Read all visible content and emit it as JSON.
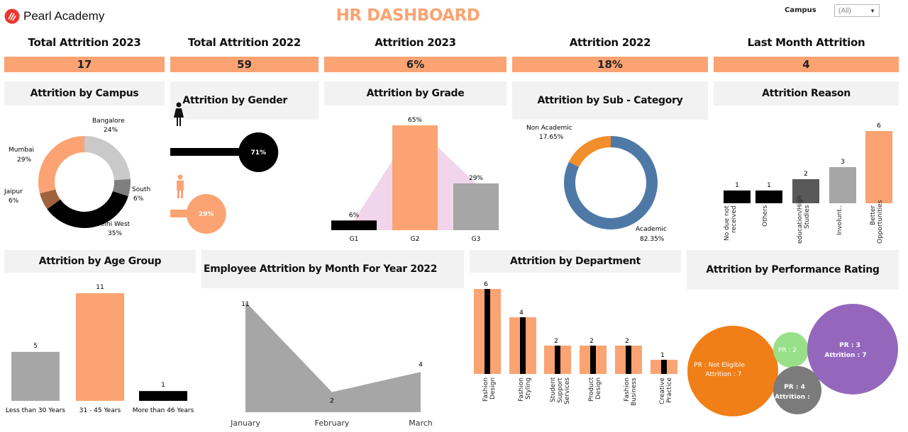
{
  "brand": {
    "name": "Pearl Academy",
    "color": "#e8382f"
  },
  "title": "HR DASHBOARD",
  "campus_filter": {
    "label": "Campus",
    "value": "(All)"
  },
  "kpis": [
    {
      "label": "Total Attrition 2023",
      "value": "17"
    },
    {
      "label": "Total Attrition 2022",
      "value": "59"
    },
    {
      "label": "Attrition 2023",
      "value": "6%"
    },
    {
      "label": "Attrition 2022",
      "value": "18%"
    },
    {
      "label": "Last Month Attrition",
      "value": "4"
    }
  ],
  "panels": {
    "campus": "Attrition by Campus",
    "gender": "Attrition  by Gender",
    "grade": "Attrition by Grade",
    "subcat": "Attrition by Sub - Category",
    "reason": "Attrition Reason",
    "age": "Attrition by Age Group",
    "month": "Employee Attrition by Month For Year 2022",
    "dept": "Attrition by Department",
    "perf": "Attrition by Performance Rating"
  },
  "colors": {
    "accent": "#fba373",
    "dark": "#000000",
    "grey": "#a6a6a6",
    "blue": "#4e79a7",
    "orange": "#f28e2b",
    "purple": "#9467bd",
    "green": "#98df8a",
    "darkgrey": "#7f7f7f"
  },
  "chart_data": [
    {
      "type": "pie",
      "id": "campus",
      "categories": [
        "Bangalore",
        "South",
        "Delhi West",
        "Jaipur",
        "Mumbai"
      ],
      "values": [
        24,
        6,
        35,
        6,
        29
      ],
      "labels": [
        "24%",
        "6%",
        "35%",
        "6%",
        "29%"
      ]
    },
    {
      "type": "bar",
      "id": "gender",
      "categories": [
        "Female",
        "Male"
      ],
      "values": [
        71,
        29
      ],
      "labels": [
        "71%",
        "29%"
      ]
    },
    {
      "type": "bar",
      "id": "grade",
      "categories": [
        "G1",
        "G2",
        "G3"
      ],
      "values": [
        6,
        65,
        29
      ],
      "labels": [
        "6%",
        "65%",
        "29%"
      ]
    },
    {
      "type": "pie",
      "id": "subcat",
      "categories": [
        "Non Academic",
        "Academic"
      ],
      "values": [
        17.65,
        82.35
      ],
      "labels": [
        "17.65%",
        "82.35%"
      ]
    },
    {
      "type": "bar",
      "id": "reason",
      "categories": [
        "No due not received",
        "Others",
        "education/High Studies",
        "Involunt..",
        "Better Opportunities"
      ],
      "values": [
        1,
        1,
        2,
        3,
        6
      ]
    },
    {
      "type": "bar",
      "id": "age",
      "categories": [
        "Less than 30 Years",
        "31 - 45 Years",
        "More than 46 Years"
      ],
      "values": [
        5,
        11,
        1
      ]
    },
    {
      "type": "area",
      "id": "month",
      "categories": [
        "January",
        "February",
        "March"
      ],
      "values": [
        11,
        2,
        4
      ]
    },
    {
      "type": "bar",
      "id": "dept",
      "categories": [
        "Fashion Design",
        "Fashion Styling",
        "Student Support Services",
        "Product Design",
        "Fashion Business",
        "Creative Practice"
      ],
      "values": [
        6,
        4,
        2,
        2,
        2,
        1
      ]
    },
    {
      "type": "scatter",
      "id": "perf",
      "categories": [
        "PR : Not Eligible",
        "PR : 2",
        "PR : 3",
        "PR : 4"
      ],
      "values": [
        7,
        null,
        7,
        null
      ],
      "labels": [
        "Attrition : 7",
        "",
        "Attrition : 7",
        "Attrition :"
      ]
    }
  ]
}
